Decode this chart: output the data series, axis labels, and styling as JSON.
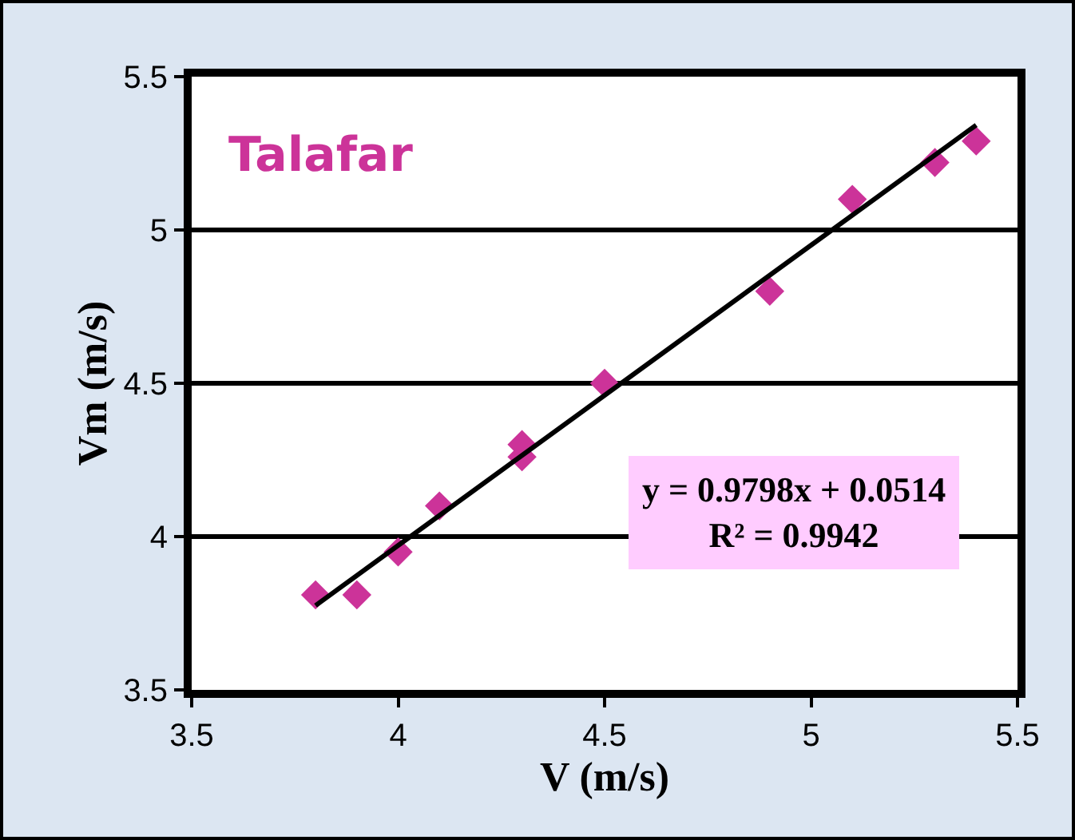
{
  "chart_data": {
    "type": "scatter",
    "xlabel": "V (m/s)",
    "ylabel": "Vm (m/s)",
    "annotations": [
      "Talafar",
      "y = 0.9798x + 0.0514\nR² = 0.9942"
    ],
    "series": [
      {
        "color": "#cc3399",
        "marker": "diamond",
        "x": [
          3.8,
          3.9,
          4.0,
          4.1,
          4.3,
          4.3,
          4.5,
          4.9,
          5.1,
          5.3,
          5.4
        ],
        "values": [
          3.81,
          3.81,
          3.95,
          4.1,
          4.3,
          4.26,
          4.5,
          4.8,
          5.1,
          5.22,
          5.29
        ]
      },
      {
        "type": "line",
        "color": "#000000",
        "marker": "none",
        "x": [
          3.8,
          5.4
        ],
        "values": [
          3.775,
          5.342
        ]
      }
    ],
    "xlim": [
      3.5,
      5.5
    ],
    "xticks": [
      3.5,
      4,
      4.5,
      5,
      5.5
    ],
    "ylim": [
      3.5,
      5.5
    ],
    "yticks": [
      3.5,
      4,
      4.5,
      5,
      5.5
    ],
    "grid": "y"
  }
}
